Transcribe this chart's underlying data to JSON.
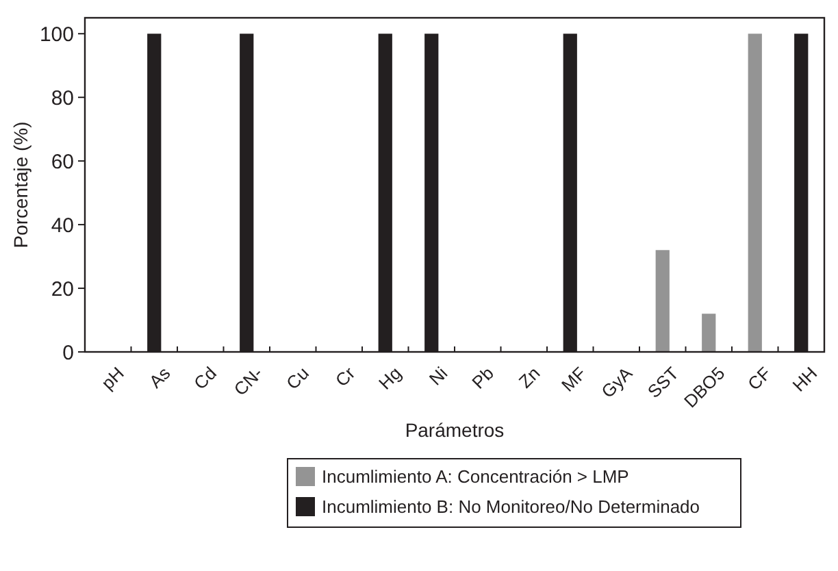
{
  "chart_data": {
    "type": "bar",
    "xlabel": "Parámetros",
    "ylabel": "Porcentaje (%)",
    "categories": [
      "pH",
      "As",
      "Cd",
      "CN-",
      "Cu",
      "Cr",
      "Hg",
      "Ni",
      "Pb",
      "Zn",
      "MF",
      "GyA",
      "SST",
      "DBO5",
      "CF",
      "HH"
    ],
    "series": [
      {
        "name": "Incumlimiento A: Concentración > LMP",
        "color": "#949494",
        "values": [
          0,
          0,
          0,
          0,
          0,
          0,
          0,
          0,
          0,
          0,
          0,
          0,
          32,
          12,
          100,
          0
        ]
      },
      {
        "name": "Incumlimiento B: No Monitoreo/No Determinado",
        "color": "#231f20",
        "values": [
          0,
          100,
          0,
          100,
          0,
          0,
          100,
          100,
          0,
          0,
          100,
          0,
          0,
          0,
          0,
          100
        ]
      }
    ],
    "ylim": [
      0,
      105
    ],
    "yticks": [
      0,
      20,
      40,
      60,
      80,
      100
    ],
    "grid": false,
    "legend": "bottom"
  }
}
